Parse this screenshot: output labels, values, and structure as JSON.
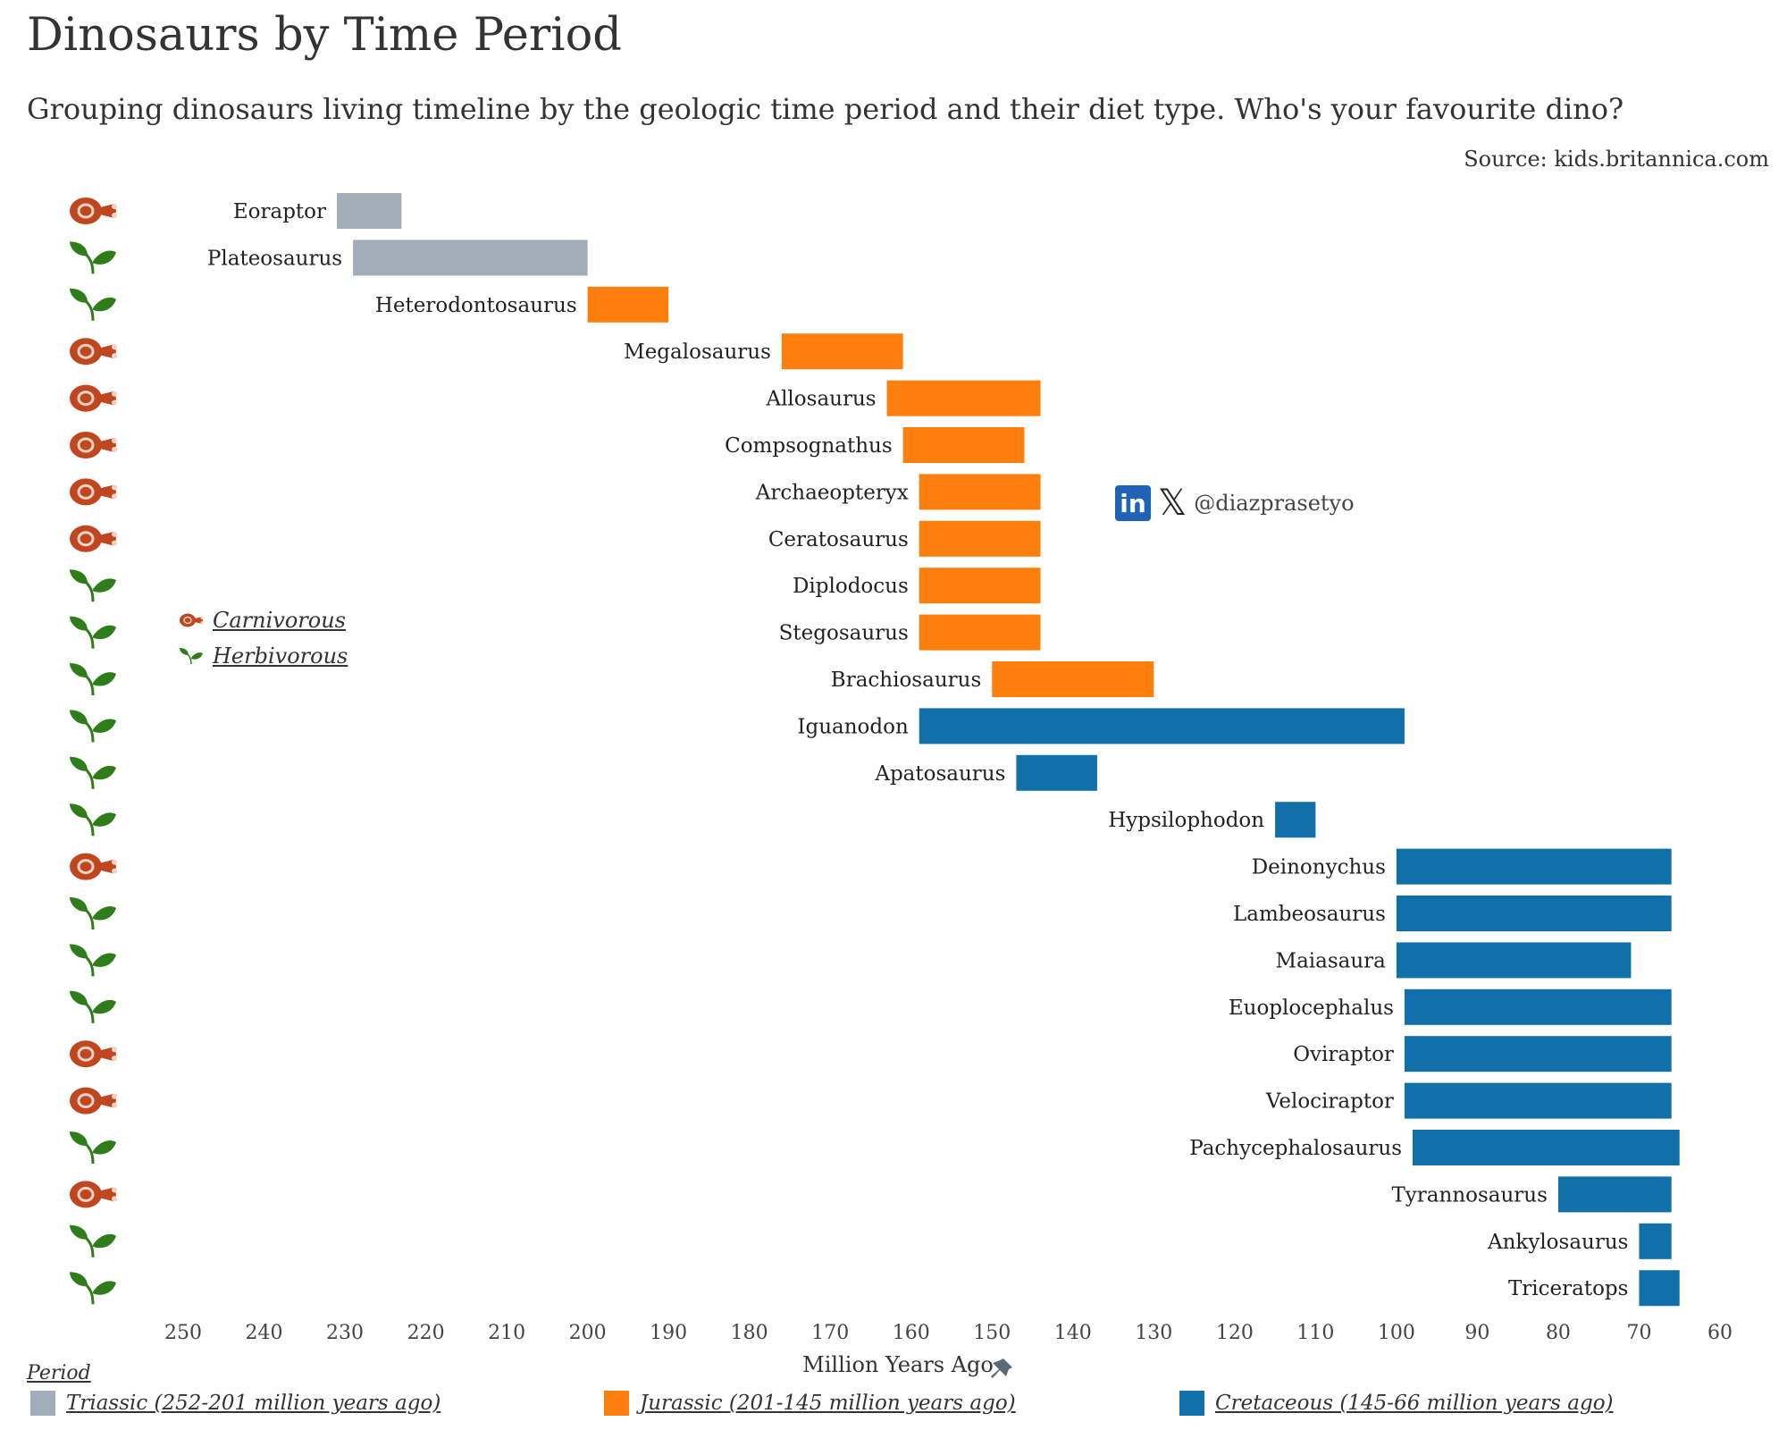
{
  "title": "Dinosaurs by Time Period",
  "subtitle": "Grouping dinosaurs living timeline by the geologic time period and their diet type. Who's your favourite dino?",
  "source": "Source: kids.britannica.com",
  "watermark": {
    "handle": "@diazprasetyo",
    "icons": [
      "linkedin-icon",
      "x-icon"
    ]
  },
  "diet_legend": [
    {
      "label": "Carnivorous",
      "icon": "meat-icon"
    },
    {
      "label": "Herbivorous",
      "icon": "leaf-icon"
    }
  ],
  "period_legend": {
    "title": "Period",
    "items": [
      {
        "label": "Triassic (252-201 million years ago)",
        "color": "#a3acb9"
      },
      {
        "label": "Jurassic (201-145 million years ago)",
        "color": "#ff7f0e"
      },
      {
        "label": "Cretaceous (145-66 million years ago)",
        "color": "#1170aa"
      }
    ]
  },
  "colors": {
    "Triassic": "#a3acb9",
    "Jurassic": "#ff7f0e",
    "Cretaceous": "#1170aa",
    "meat": "#c0461f",
    "leaf": "#2e7d1a"
  },
  "chart_data": {
    "type": "bar",
    "orientation": "horizontal-range",
    "xlabel": "Million Years Ago",
    "xlim": [
      250,
      60
    ],
    "x_reversed": true,
    "x_ticks": [
      250,
      240,
      230,
      220,
      210,
      200,
      190,
      180,
      170,
      160,
      150,
      140,
      130,
      120,
      110,
      100,
      90,
      80,
      70,
      60
    ],
    "rows": [
      {
        "name": "Eoraptor",
        "start": 231,
        "end": 223,
        "period": "Triassic",
        "diet": "Carnivorous"
      },
      {
        "name": "Plateosaurus",
        "start": 229,
        "end": 200,
        "period": "Triassic",
        "diet": "Herbivorous"
      },
      {
        "name": "Heterodontosaurus",
        "start": 200,
        "end": 190,
        "period": "Jurassic",
        "diet": "Herbivorous"
      },
      {
        "name": "Megalosaurus",
        "start": 176,
        "end": 161,
        "period": "Jurassic",
        "diet": "Carnivorous"
      },
      {
        "name": "Allosaurus",
        "start": 163,
        "end": 144,
        "period": "Jurassic",
        "diet": "Carnivorous"
      },
      {
        "name": "Compsognathus",
        "start": 161,
        "end": 146,
        "period": "Jurassic",
        "diet": "Carnivorous"
      },
      {
        "name": "Archaeopteryx",
        "start": 159,
        "end": 144,
        "period": "Jurassic",
        "diet": "Carnivorous"
      },
      {
        "name": "Ceratosaurus",
        "start": 159,
        "end": 144,
        "period": "Jurassic",
        "diet": "Carnivorous"
      },
      {
        "name": "Diplodocus",
        "start": 159,
        "end": 144,
        "period": "Jurassic",
        "diet": "Herbivorous"
      },
      {
        "name": "Stegosaurus",
        "start": 159,
        "end": 144,
        "period": "Jurassic",
        "diet": "Herbivorous"
      },
      {
        "name": "Brachiosaurus",
        "start": 150,
        "end": 130,
        "period": "Jurassic",
        "diet": "Herbivorous"
      },
      {
        "name": "Iguanodon",
        "start": 159,
        "end": 99,
        "period": "Cretaceous",
        "diet": "Herbivorous"
      },
      {
        "name": "Apatosaurus",
        "start": 147,
        "end": 137,
        "period": "Cretaceous",
        "diet": "Herbivorous"
      },
      {
        "name": "Hypsilophodon",
        "start": 115,
        "end": 110,
        "period": "Cretaceous",
        "diet": "Herbivorous"
      },
      {
        "name": "Deinonychus",
        "start": 100,
        "end": 66,
        "period": "Cretaceous",
        "diet": "Carnivorous"
      },
      {
        "name": "Lambeosaurus",
        "start": 100,
        "end": 66,
        "period": "Cretaceous",
        "diet": "Herbivorous"
      },
      {
        "name": "Maiasaura",
        "start": 100,
        "end": 71,
        "period": "Cretaceous",
        "diet": "Herbivorous"
      },
      {
        "name": "Euoplocephalus",
        "start": 99,
        "end": 66,
        "period": "Cretaceous",
        "diet": "Herbivorous"
      },
      {
        "name": "Oviraptor",
        "start": 99,
        "end": 66,
        "period": "Cretaceous",
        "diet": "Carnivorous"
      },
      {
        "name": "Velociraptor",
        "start": 99,
        "end": 66,
        "period": "Cretaceous",
        "diet": "Carnivorous"
      },
      {
        "name": "Pachycephalosaurus",
        "start": 98,
        "end": 65,
        "period": "Cretaceous",
        "diet": "Herbivorous"
      },
      {
        "name": "Tyrannosaurus",
        "start": 80,
        "end": 66,
        "period": "Cretaceous",
        "diet": "Carnivorous"
      },
      {
        "name": "Ankylosaurus",
        "start": 70,
        "end": 66,
        "period": "Cretaceous",
        "diet": "Herbivorous"
      },
      {
        "name": "Triceratops",
        "start": 70,
        "end": 65,
        "period": "Cretaceous",
        "diet": "Herbivorous"
      }
    ]
  }
}
